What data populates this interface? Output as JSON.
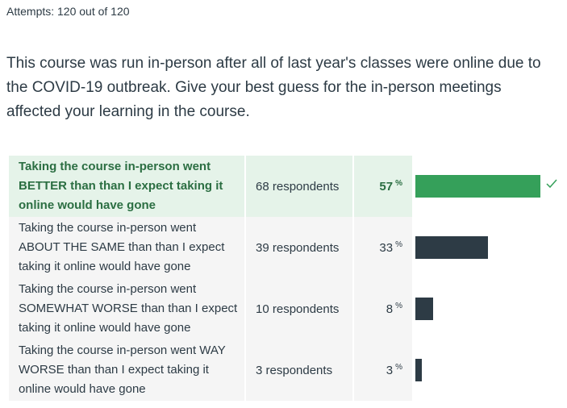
{
  "attempts_text": "Attempts: 120 out of 120",
  "question": "This course was run in-person after all of last year's classes were online due to the COVID-19 outbreak.  Give your best guess for the in-person meetings affected your learning in the course.",
  "answers": [
    {
      "text": "Taking the course in-person went BETTER than than I expect taking it online would have gone",
      "respondents": "68 respondents",
      "percent": "57",
      "percent_sign": "%",
      "fraction": 0.57,
      "correct": true
    },
    {
      "text": "Taking the course in-person went ABOUT THE SAME than than I expect taking it online would have gone",
      "respondents": "39 respondents",
      "percent": "33",
      "percent_sign": "%",
      "fraction": 0.33,
      "correct": false
    },
    {
      "text": "Taking the course in-person went SOMEWHAT WORSE than than I expect taking it online would have gone",
      "respondents": "10 respondents",
      "percent": "8",
      "percent_sign": "%",
      "fraction": 0.08,
      "correct": false
    },
    {
      "text": "Taking the course in-person went WAY WORSE than than I expect taking it online would have gone",
      "respondents": "3 respondents",
      "percent": "3",
      "percent_sign": "%",
      "fraction": 0.03,
      "correct": false
    }
  ],
  "colors": {
    "correct_bar": "#35a05a",
    "bar": "#2d3b45",
    "correct_bg": "#e5f3e9"
  },
  "icons": {
    "correct": "check-icon"
  }
}
